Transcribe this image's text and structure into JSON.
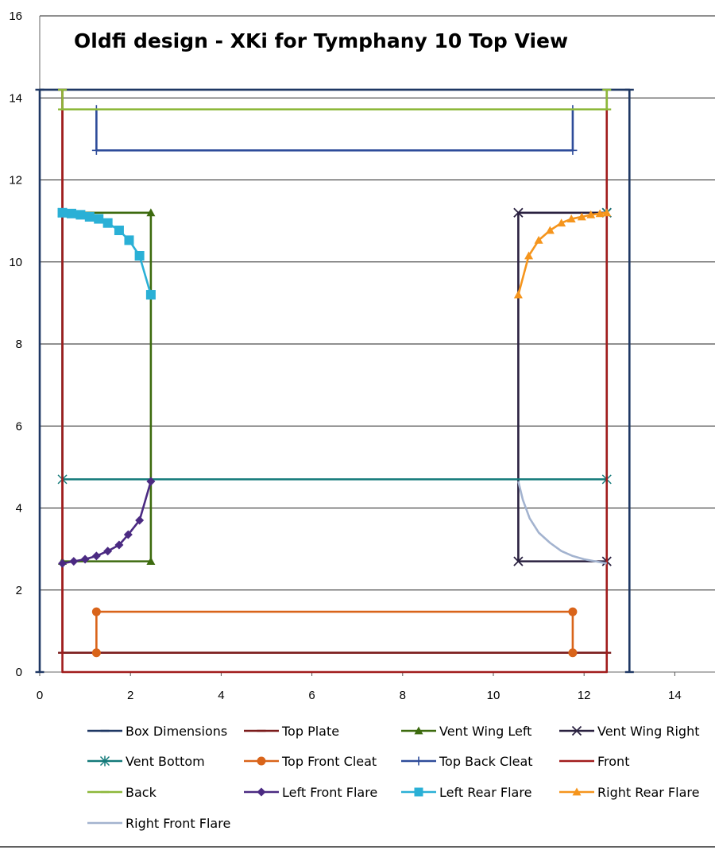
{
  "chart_data": {
    "type": "scatter",
    "title": "Oldfi design - XKi for Tymphany 10  Top View",
    "xlim": [
      0,
      14.5
    ],
    "ylim": [
      0,
      16
    ],
    "xticks": [
      "0",
      "2",
      "4",
      "6",
      "8",
      "10",
      "12",
      "14"
    ],
    "yticks": [
      "0",
      "2",
      "4",
      "6",
      "8",
      "10",
      "12",
      "14",
      "16"
    ],
    "grid": "horizontal",
    "legend_position": "bottom",
    "series": [
      {
        "name": "Box Dimensions",
        "color": "#1f3864",
        "marker": "dash",
        "x": [
          0,
          0,
          13,
          13
        ],
        "y": [
          0,
          14.2,
          14.2,
          0
        ]
      },
      {
        "name": "Top Plate",
        "color": "#7b1c1c",
        "marker": "dash",
        "x": [
          12.5,
          0.5,
          0.5
        ],
        "y": [
          0.47,
          0.47,
          14.2
        ]
      },
      {
        "name": "Vent Wing  Left",
        "color": "#3d6b0f",
        "marker": "triangle",
        "x": [
          0.5,
          2.45,
          2.45,
          0.5
        ],
        "y": [
          11.2,
          11.2,
          2.7,
          2.7
        ]
      },
      {
        "name": "Vent Wing  Right",
        "color": "#2a2140",
        "marker": "x",
        "x": [
          12.5,
          10.55,
          10.55,
          12.5
        ],
        "y": [
          11.2,
          11.2,
          2.7,
          2.7
        ]
      },
      {
        "name": "Vent Bottom",
        "color": "#137a7a",
        "marker": "star",
        "x": [
          0.5,
          0.5,
          12.5,
          12.5
        ],
        "y": [
          11.2,
          4.7,
          4.7,
          11.2
        ]
      },
      {
        "name": "Top Front  Cleat",
        "color": "#d9641a",
        "marker": "circle",
        "x": [
          1.25,
          1.25,
          11.75,
          11.75
        ],
        "y": [
          0.47,
          1.47,
          1.47,
          0.47
        ]
      },
      {
        "name": "Top Back  Cleat",
        "color": "#2e4c9a",
        "marker": "plus",
        "x": [
          1.25,
          1.25,
          11.75,
          11.75
        ],
        "y": [
          13.72,
          12.72,
          12.72,
          13.72
        ]
      },
      {
        "name": "Front",
        "color": "#a11c1c",
        "marker": "none",
        "x": [
          0.5,
          0.5,
          12.5,
          12.5
        ],
        "y": [
          14.2,
          0,
          0,
          14.2
        ]
      },
      {
        "name": "Back",
        "color": "#8db83a",
        "marker": "dash",
        "x": [
          0.5,
          0.5,
          12.5,
          12.5
        ],
        "y": [
          14.2,
          13.72,
          13.72,
          14.2
        ]
      },
      {
        "name": "Left Front  Flare",
        "color": "#4b2a82",
        "marker": "diamond",
        "x": [
          0.5,
          0.75,
          1.0,
          1.25,
          1.5,
          1.75,
          1.95,
          2.2,
          2.45
        ],
        "y": [
          2.65,
          2.7,
          2.75,
          2.83,
          2.95,
          3.1,
          3.35,
          3.7,
          4.65
        ]
      },
      {
        "name": "Left Rear  Flare",
        "color": "#2ab0d6",
        "marker": "square",
        "x": [
          0.5,
          0.7,
          0.9,
          1.1,
          1.3,
          1.5,
          1.75,
          1.97,
          2.2,
          2.45
        ],
        "y": [
          11.2,
          11.18,
          11.15,
          11.1,
          11.05,
          10.95,
          10.77,
          10.53,
          10.15,
          9.2
        ]
      },
      {
        "name": "Right Rear  Flare",
        "color": "#f5951d",
        "marker": "triangle",
        "x": [
          10.55,
          10.78,
          11.0,
          11.25,
          11.5,
          11.72,
          11.95,
          12.15,
          12.35,
          12.5
        ],
        "y": [
          9.2,
          10.15,
          10.53,
          10.77,
          10.95,
          11.05,
          11.1,
          11.15,
          11.18,
          11.2
        ]
      },
      {
        "name": "Right Front  Flare",
        "color": "#a3b3cf",
        "marker": "none",
        "x": [
          10.55,
          10.65,
          10.8,
          11.0,
          11.25,
          11.5,
          11.75,
          12.0,
          12.25,
          12.5
        ],
        "y": [
          4.65,
          4.2,
          3.75,
          3.4,
          3.15,
          2.95,
          2.83,
          2.75,
          2.7,
          2.65
        ]
      }
    ]
  }
}
